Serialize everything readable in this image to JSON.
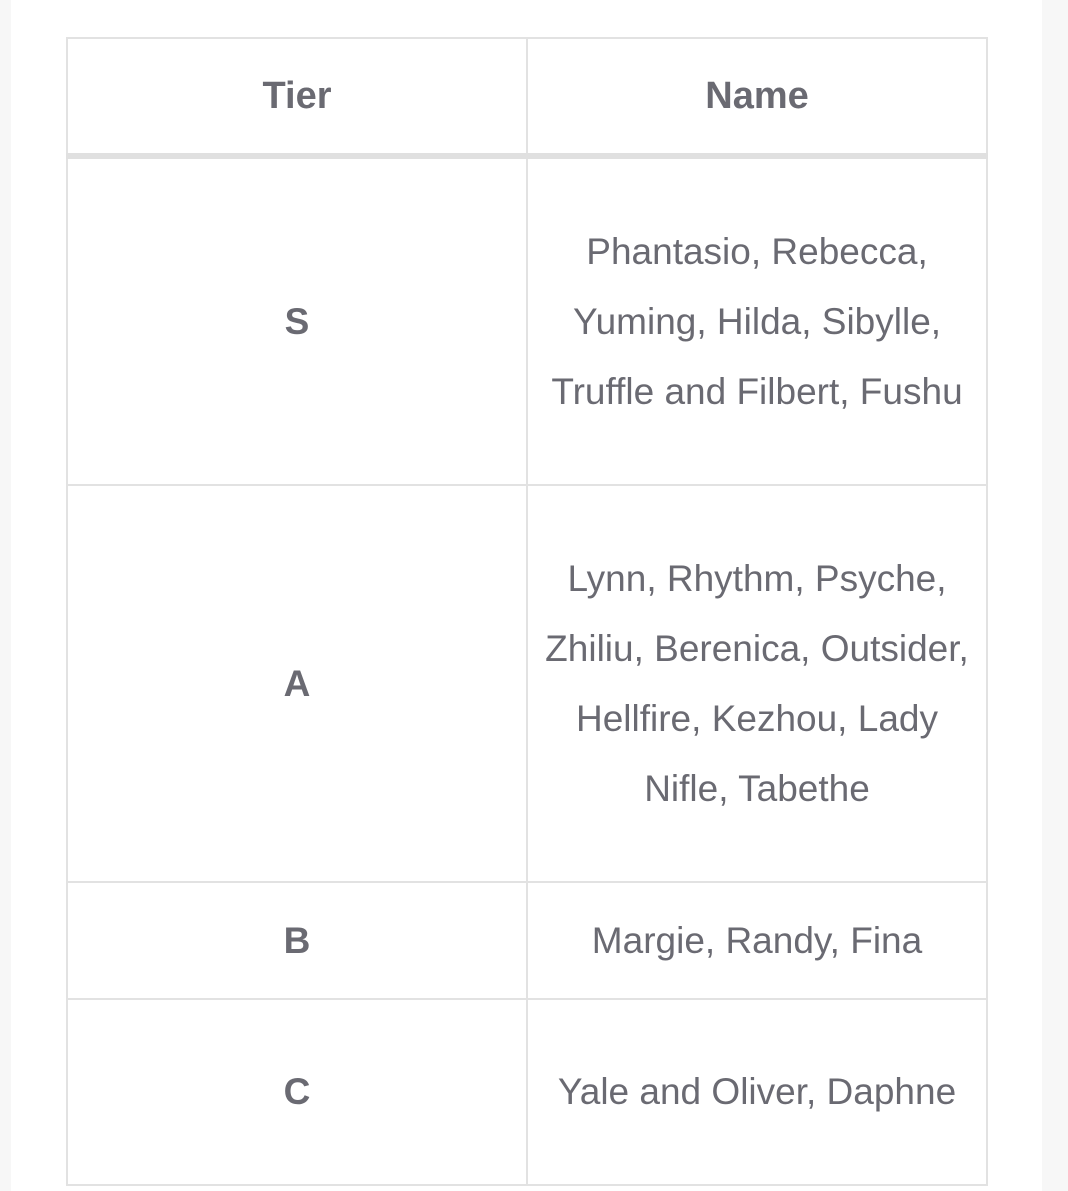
{
  "table": {
    "headers": [
      "Tier",
      "Name"
    ],
    "rows": [
      {
        "tier": "S",
        "names": "Phantasio, Rebecca, Yuming, Hilda, Sibylle, Truffle and Filbert, Fushu"
      },
      {
        "tier": "A",
        "names": "Lynn, Rhythm, Psyche, Zhiliu, Berenica, Outsider, Hellfire, Kezhou, Lady Nifle, Tabethe"
      },
      {
        "tier": "B",
        "names": "Margie, Randy, Fina"
      },
      {
        "tier": "C",
        "names": "Yale and Oliver, Daphne"
      }
    ]
  }
}
